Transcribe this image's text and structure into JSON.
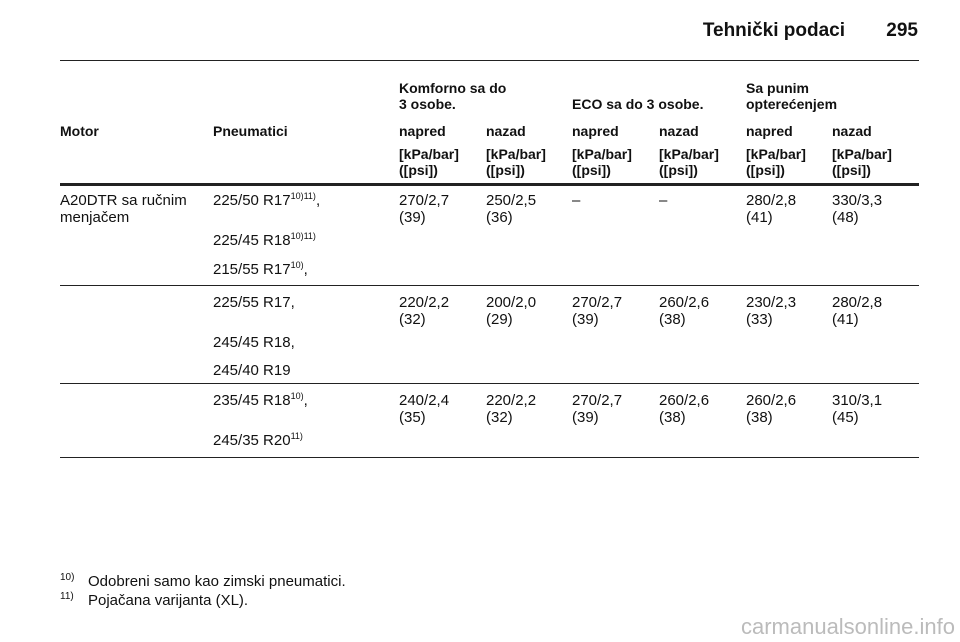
{
  "header": {
    "title": "Tehnički podaci",
    "page": "295"
  },
  "table": {
    "groups": [
      {
        "lines": [
          "Komforno sa do",
          "3 osobe."
        ]
      },
      {
        "lines": [
          "ECO sa do 3 osobe."
        ]
      },
      {
        "lines": [
          "Sa punim",
          "opterećenjem"
        ]
      }
    ],
    "columns": [
      "Motor",
      "Pneumatici",
      "napred",
      "nazad",
      "napred",
      "nazad",
      "napred",
      "nazad"
    ],
    "units": [
      [
        "[kPa/bar]",
        "([psi])"
      ],
      [
        "[kPa/bar]",
        "([psi])"
      ],
      [
        "[kPa/bar]",
        "([psi])"
      ],
      [
        "[kPa/bar]",
        "([psi])"
      ],
      [
        "[kPa/bar]",
        "([psi])"
      ],
      [
        "[kPa/bar]",
        "([psi])"
      ]
    ],
    "motor": [
      "A20DTR sa ručnim",
      "menjačem"
    ],
    "row_groups": [
      {
        "tyres": [
          {
            "text": "225/50 R17",
            "sup": "10)11)",
            "suffix": ","
          },
          {
            "text": "225/45 R18",
            "sup": "10)11)"
          },
          {
            "text": "215/55 R17",
            "sup": "10)",
            "suffix": ","
          }
        ],
        "values": [
          [
            "270/2,7",
            "(39)"
          ],
          [
            "250/2,5",
            "(36)"
          ],
          [
            "–"
          ],
          [
            "–"
          ],
          [
            "280/2,8",
            "(41)"
          ],
          [
            "330/3,3",
            "(48)"
          ]
        ]
      },
      {
        "tyres": [
          {
            "text": "225/55 R17,"
          },
          {
            "text": "245/45 R18,"
          },
          {
            "text": "245/40 R19"
          }
        ],
        "values": [
          [
            "220/2,2",
            "(32)"
          ],
          [
            "200/2,0",
            "(29)"
          ],
          [
            "270/2,7",
            "(39)"
          ],
          [
            "260/2,6",
            "(38)"
          ],
          [
            "230/2,3",
            "(33)"
          ],
          [
            "280/2,8",
            "(41)"
          ]
        ]
      },
      {
        "tyres": [
          {
            "text": "235/45 R18",
            "sup": "10)",
            "suffix": ","
          },
          {
            "text": "245/35 R20",
            "sup": "11)"
          }
        ],
        "values": [
          [
            "240/2,4",
            "(35)"
          ],
          [
            "220/2,2",
            "(32)"
          ],
          [
            "270/2,7",
            "(39)"
          ],
          [
            "260/2,6",
            "(38)"
          ],
          [
            "260/2,6",
            "(38)"
          ],
          [
            "310/3,1",
            "(45)"
          ]
        ]
      }
    ]
  },
  "footnotes": [
    {
      "mark": "10)",
      "text": "Odobreni samo kao zimski pneumatici."
    },
    {
      "mark": "11)",
      "text": "Pojačana varijanta (XL)."
    }
  ],
  "watermark": "carmanualsonline.info"
}
